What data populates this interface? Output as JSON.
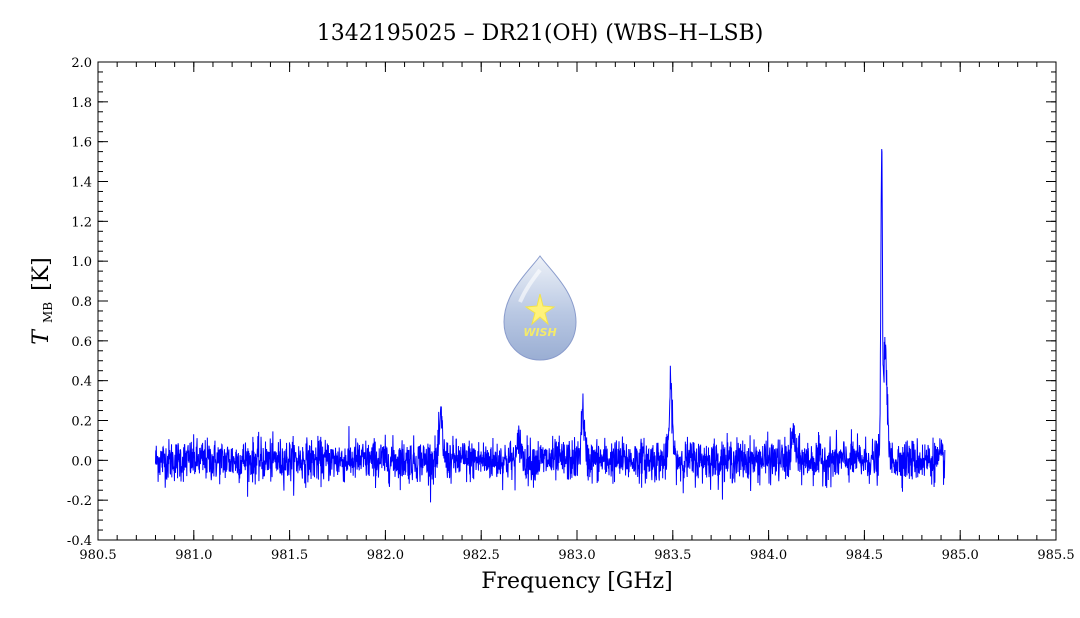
{
  "chart_data": {
    "type": "line",
    "title": "1342195025 – DR21(OH) (WBS–H–LSB)",
    "xlabel": "Frequency [GHz]",
    "ylabel_main": "T",
    "ylabel_sub": "MB",
    "ylabel_unit": "[K]",
    "xlim": [
      980.5,
      985.5
    ],
    "ylim": [
      -0.4,
      2.0
    ],
    "xticks": [
      "980.5",
      "981.0",
      "981.5",
      "982.0",
      "982.5",
      "983.0",
      "983.5",
      "984.0",
      "984.5",
      "985.0",
      "985.5"
    ],
    "yticks": [
      "-0.4",
      "-0.2",
      "0.0",
      "0.2",
      "0.4",
      "0.6",
      "0.8",
      "1.0",
      "1.2",
      "1.4",
      "1.6",
      "1.8",
      "2.0"
    ],
    "grid": false,
    "series": [
      {
        "color": "#0000ff",
        "x_range": [
          980.8,
          984.92
        ],
        "noise_amplitude": 0.07,
        "baseline": 0.0,
        "features": [
          {
            "center": 982.29,
            "peak": 0.24
          },
          {
            "center": 982.7,
            "peak": 0.12
          },
          {
            "center": 983.03,
            "peak": 0.29
          },
          {
            "center": 983.49,
            "peak": 0.42
          },
          {
            "center": 984.13,
            "peak": 0.16
          },
          {
            "center": 984.59,
            "peak": 1.77
          },
          {
            "center": 984.61,
            "peak": 0.68
          }
        ]
      }
    ]
  },
  "logo": {
    "text": "WISH",
    "colors": {
      "drop_top": "#e9eef6",
      "drop_bottom": "#9fb3d6",
      "star": "#fff27a",
      "text": "#f4ea6a"
    }
  }
}
